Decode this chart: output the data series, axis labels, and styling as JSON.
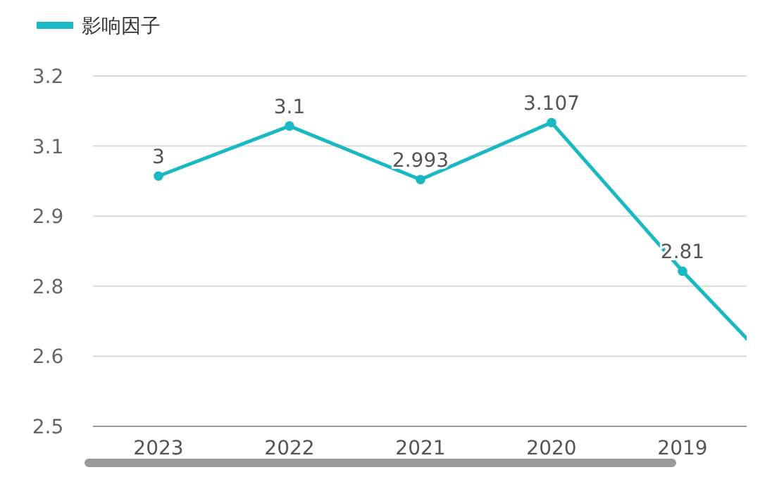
{
  "chart_data": {
    "type": "line",
    "categories": [
      "2023",
      "2022",
      "2021",
      "2020",
      "2019",
      null
    ],
    "series": [
      {
        "name": "影响因子",
        "color": "#1ab8c2",
        "values": [
          3,
          3.1,
          2.993,
          3.107,
          2.81,
          2.535
        ]
      }
    ],
    "value_labels": [
      "3",
      "3.1",
      "2.993",
      "3.107",
      "2.81",
      null
    ],
    "ylim": [
      2.5,
      3.2
    ],
    "yticks": [
      2.5,
      {
        "value": 2.64,
        "label": "2.6"
      },
      {
        "value": 2.78,
        "label": "2.8"
      },
      {
        "value": 2.92,
        "label": "2.9"
      },
      {
        "value": 3.06,
        "label": "3.1"
      },
      3.2
    ],
    "grid": "y",
    "legend": "top left",
    "marker": "circle",
    "line_style": "solid"
  }
}
